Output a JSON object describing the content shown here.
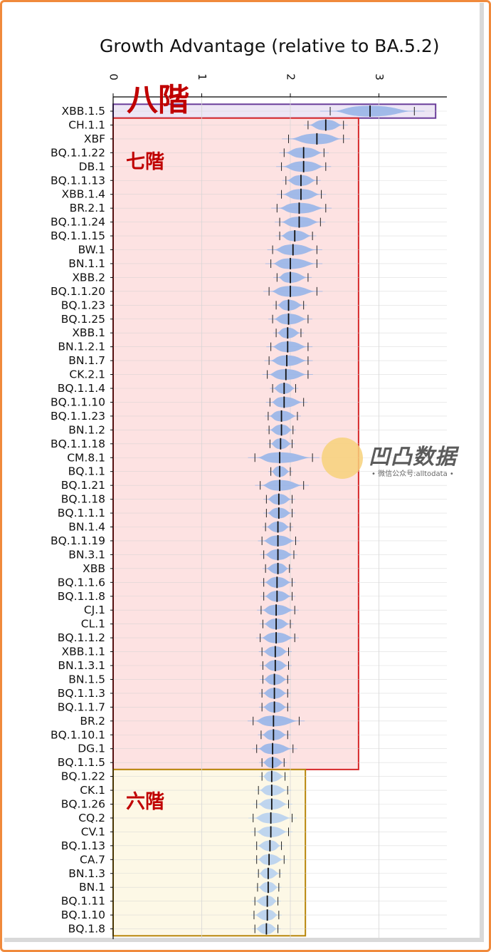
{
  "chart_data": {
    "type": "violin",
    "title": "Growth Advantage (relative to BA.5.2)",
    "xlabel": "",
    "ylabel": "",
    "xlim": [
      0,
      3.7
    ],
    "xticks": [
      0,
      1,
      2,
      3
    ],
    "grid": true,
    "series": [
      {
        "variant": "XBB.1.5",
        "median": 2.9,
        "low": 2.45,
        "high": 3.4
      },
      {
        "variant": "CH.1.1",
        "median": 2.4,
        "low": 2.2,
        "high": 2.6
      },
      {
        "variant": "XBF",
        "median": 2.3,
        "low": 1.98,
        "high": 2.6
      },
      {
        "variant": "BQ.1.1.22",
        "median": 2.15,
        "low": 1.93,
        "high": 2.38
      },
      {
        "variant": "DB.1",
        "median": 2.15,
        "low": 1.9,
        "high": 2.4
      },
      {
        "variant": "BQ.1.1.13",
        "median": 2.12,
        "low": 1.95,
        "high": 2.3
      },
      {
        "variant": "XBB.1.4",
        "median": 2.12,
        "low": 1.9,
        "high": 2.35
      },
      {
        "variant": "BR.2.1",
        "median": 2.1,
        "low": 1.85,
        "high": 2.4
      },
      {
        "variant": "BQ.1.1.24",
        "median": 2.1,
        "low": 1.88,
        "high": 2.34
      },
      {
        "variant": "BQ.1.1.15",
        "median": 2.05,
        "low": 1.88,
        "high": 2.25
      },
      {
        "variant": "BW.1",
        "median": 2.03,
        "low": 1.8,
        "high": 2.3
      },
      {
        "variant": "BN.1.1",
        "median": 2.0,
        "low": 1.78,
        "high": 2.3
      },
      {
        "variant": "XBB.2",
        "median": 2.0,
        "low": 1.85,
        "high": 2.2
      },
      {
        "variant": "BQ.1.1.20",
        "median": 2.0,
        "low": 1.76,
        "high": 2.3
      },
      {
        "variant": "BQ.1.23",
        "median": 1.98,
        "low": 1.84,
        "high": 2.15
      },
      {
        "variant": "BQ.1.25",
        "median": 1.98,
        "low": 1.8,
        "high": 2.2
      },
      {
        "variant": "XBB.1",
        "median": 1.97,
        "low": 1.84,
        "high": 2.12
      },
      {
        "variant": "BN.1.2.1",
        "median": 1.97,
        "low": 1.78,
        "high": 2.2
      },
      {
        "variant": "BN.1.7",
        "median": 1.96,
        "low": 1.76,
        "high": 2.2
      },
      {
        "variant": "CK.2.1",
        "median": 1.95,
        "low": 1.74,
        "high": 2.2
      },
      {
        "variant": "BQ.1.1.4",
        "median": 1.93,
        "low": 1.8,
        "high": 2.06
      },
      {
        "variant": "BQ.1.1.10",
        "median": 1.93,
        "low": 1.77,
        "high": 2.15
      },
      {
        "variant": "BQ.1.1.23",
        "median": 1.9,
        "low": 1.75,
        "high": 2.08
      },
      {
        "variant": "BN.1.2",
        "median": 1.9,
        "low": 1.76,
        "high": 2.03
      },
      {
        "variant": "BQ.1.1.18",
        "median": 1.89,
        "low": 1.77,
        "high": 2.02
      },
      {
        "variant": "CM.8.1",
        "median": 1.88,
        "low": 1.6,
        "high": 2.25
      },
      {
        "variant": "BQ.1.1",
        "median": 1.88,
        "low": 1.78,
        "high": 2.0
      },
      {
        "variant": "BQ.1.21",
        "median": 1.88,
        "low": 1.66,
        "high": 2.15
      },
      {
        "variant": "BQ.1.18",
        "median": 1.87,
        "low": 1.73,
        "high": 2.02
      },
      {
        "variant": "BQ.1.1.1",
        "median": 1.87,
        "low": 1.73,
        "high": 2.02
      },
      {
        "variant": "BN.1.4",
        "median": 1.86,
        "low": 1.72,
        "high": 2.0
      },
      {
        "variant": "BQ.1.1.19",
        "median": 1.86,
        "low": 1.68,
        "high": 2.06
      },
      {
        "variant": "BN.3.1",
        "median": 1.86,
        "low": 1.7,
        "high": 2.04
      },
      {
        "variant": "XBB",
        "median": 1.86,
        "low": 1.72,
        "high": 1.99
      },
      {
        "variant": "BQ.1.1.6",
        "median": 1.85,
        "low": 1.7,
        "high": 2.02
      },
      {
        "variant": "BQ.1.1.8",
        "median": 1.85,
        "low": 1.7,
        "high": 2.02
      },
      {
        "variant": "CJ.1",
        "median": 1.84,
        "low": 1.67,
        "high": 2.05
      },
      {
        "variant": "CL.1",
        "median": 1.84,
        "low": 1.69,
        "high": 2.0
      },
      {
        "variant": "BQ.1.1.2",
        "median": 1.84,
        "low": 1.66,
        "high": 2.05
      },
      {
        "variant": "XBB.1.1",
        "median": 1.83,
        "low": 1.68,
        "high": 1.98
      },
      {
        "variant": "BN.1.3.1",
        "median": 1.83,
        "low": 1.69,
        "high": 1.98
      },
      {
        "variant": "BN.1.5",
        "median": 1.82,
        "low": 1.69,
        "high": 1.97
      },
      {
        "variant": "BQ.1.1.3",
        "median": 1.82,
        "low": 1.68,
        "high": 1.97
      },
      {
        "variant": "BQ.1.1.7",
        "median": 1.82,
        "low": 1.68,
        "high": 1.97
      },
      {
        "variant": "BR.2",
        "median": 1.81,
        "low": 1.58,
        "high": 2.1
      },
      {
        "variant": "BQ.1.10.1",
        "median": 1.81,
        "low": 1.67,
        "high": 1.97
      },
      {
        "variant": "DG.1",
        "median": 1.8,
        "low": 1.62,
        "high": 2.03
      },
      {
        "variant": "BQ.1.1.5",
        "median": 1.8,
        "low": 1.68,
        "high": 1.93
      },
      {
        "variant": "BQ.1.22",
        "median": 1.79,
        "low": 1.68,
        "high": 1.94
      },
      {
        "variant": "CK.1",
        "median": 1.79,
        "low": 1.64,
        "high": 1.97
      },
      {
        "variant": "BQ.1.26",
        "median": 1.79,
        "low": 1.62,
        "high": 1.98
      },
      {
        "variant": "CQ.2",
        "median": 1.78,
        "low": 1.58,
        "high": 2.02
      },
      {
        "variant": "CV.1",
        "median": 1.78,
        "low": 1.6,
        "high": 1.98
      },
      {
        "variant": "BQ.1.13",
        "median": 1.77,
        "low": 1.62,
        "high": 1.9
      },
      {
        "variant": "CA.7",
        "median": 1.76,
        "low": 1.62,
        "high": 1.93
      },
      {
        "variant": "BN.1.3",
        "median": 1.75,
        "low": 1.64,
        "high": 1.88
      },
      {
        "variant": "BN.1",
        "median": 1.75,
        "low": 1.63,
        "high": 1.87
      },
      {
        "variant": "BQ.1.11",
        "median": 1.74,
        "low": 1.6,
        "high": 1.86
      },
      {
        "variant": "BQ.1.10",
        "median": 1.74,
        "low": 1.59,
        "high": 1.87
      },
      {
        "variant": "BQ.1.8",
        "median": 1.73,
        "low": 1.6,
        "high": 1.86
      }
    ],
    "groups": [
      {
        "label": "八階",
        "from": 0,
        "to": 0,
        "fill": "#ede6f5",
        "stroke": "#6a3d9a",
        "xmax": 3.64
      },
      {
        "label": "七階",
        "from": 1,
        "to": 47,
        "fill": "#fde2e2",
        "stroke": "#d62728",
        "xmax": 2.77
      },
      {
        "label": "六階",
        "from": 48,
        "to": 59,
        "fill": "#fdf8e6",
        "stroke": "#b8860b",
        "xmax": 2.17
      }
    ],
    "colors": {
      "violin": "#9db7e8",
      "violin_light": "#bcd3ee",
      "median": "#111111",
      "label_red": "#c00000"
    }
  },
  "watermark": {
    "logo_text": "凹凸数据",
    "subtitle": "• 微信公众号:alltodata •"
  }
}
